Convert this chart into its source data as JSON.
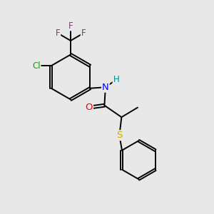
{
  "background_color": "#e8e8e8",
  "bond_color": "#000000",
  "atom_colors": {
    "F": "#cc00cc",
    "Cl": "#00aa00",
    "N": "#0000ff",
    "H": "#008888",
    "O": "#ff0000",
    "S": "#ccaa00",
    "C": "#000000"
  },
  "figsize": [
    3.0,
    3.0
  ],
  "dpi": 100,
  "lw": 1.4
}
